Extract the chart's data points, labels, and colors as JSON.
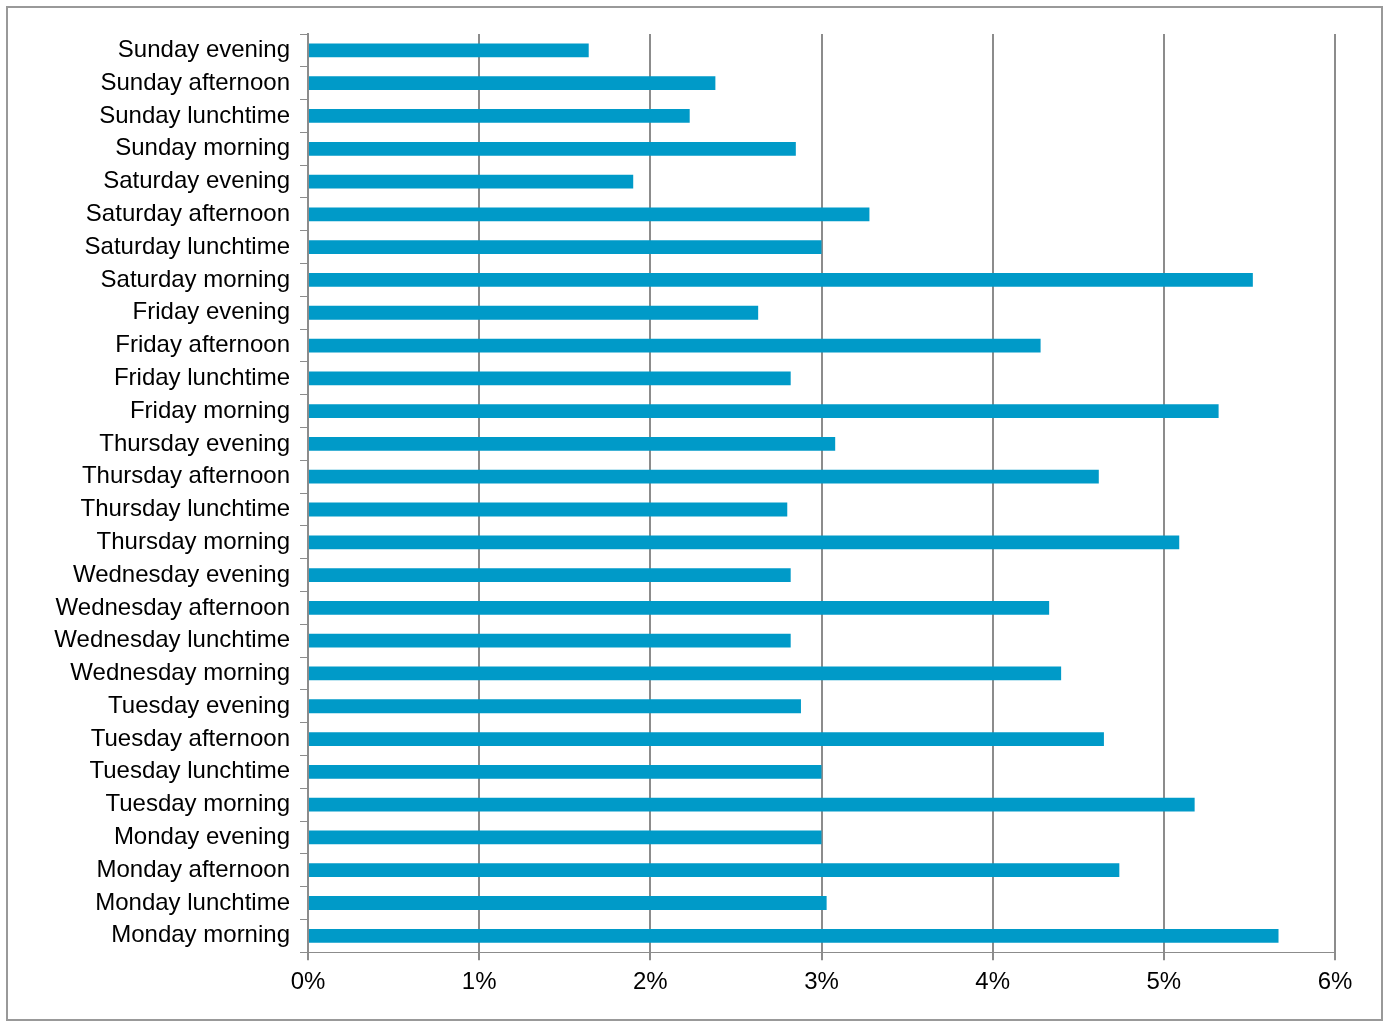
{
  "chart_data": {
    "type": "bar",
    "orientation": "horizontal",
    "categories": [
      "Sunday evening",
      "Sunday afternoon",
      "Sunday lunchtime",
      "Sunday morning",
      "Saturday evening",
      "Saturday afternoon",
      "Saturday lunchtime",
      "Saturday morning",
      "Friday evening",
      "Friday afternoon",
      "Friday lunchtime",
      "Friday morning",
      "Thursday evening",
      "Thursday afternoon",
      "Thursday lunchtime",
      "Thursday morning",
      "Wednesday evening",
      "Wednesday afternoon",
      "Wednesday lunchtime",
      "Wednesday morning",
      "Tuesday evening",
      "Tuesday afternoon",
      "Tuesday lunchtime",
      "Tuesday morning",
      "Monday evening",
      "Monday afternoon",
      "Monday lunchtime",
      "Monday morning"
    ],
    "values": [
      1.64,
      2.38,
      2.23,
      2.85,
      1.9,
      3.28,
      3.0,
      5.52,
      2.63,
      4.28,
      2.82,
      5.32,
      3.08,
      4.62,
      2.8,
      5.09,
      2.82,
      4.33,
      2.82,
      4.4,
      2.88,
      4.65,
      3.0,
      5.18,
      3.0,
      4.74,
      3.03,
      5.67
    ],
    "color": "#009ac8",
    "xlim": [
      0,
      6
    ],
    "xticks": [
      {
        "value": 0,
        "label": "0%"
      },
      {
        "value": 1,
        "label": "1%"
      },
      {
        "value": 2,
        "label": "2%"
      },
      {
        "value": 3,
        "label": "3%"
      },
      {
        "value": 4,
        "label": "4%"
      },
      {
        "value": 5,
        "label": "5%"
      },
      {
        "value": 6,
        "label": "6%"
      }
    ],
    "grid": "x",
    "legend": false
  }
}
